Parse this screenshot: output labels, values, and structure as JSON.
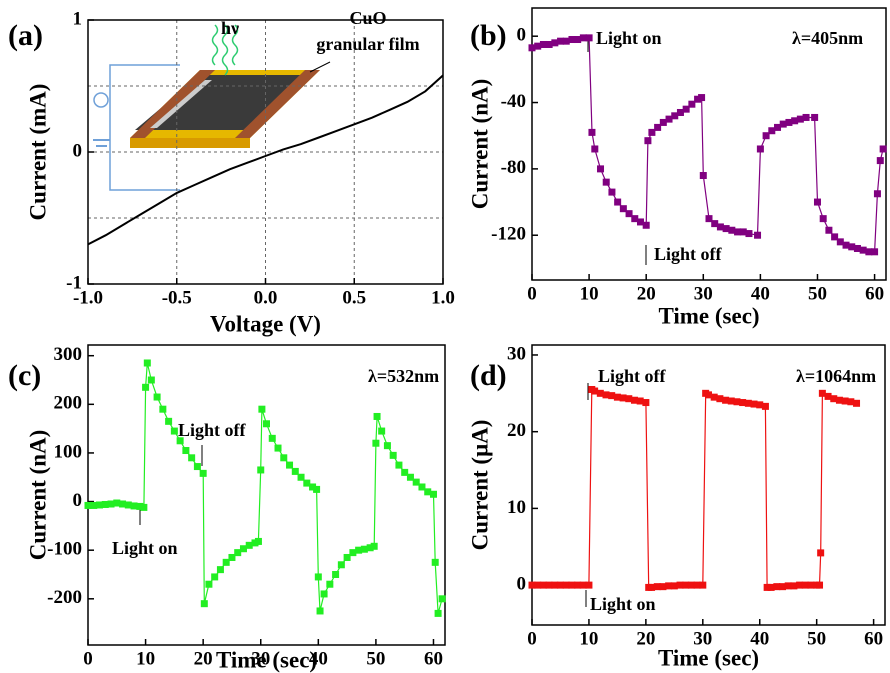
{
  "chart_data": [
    {
      "type": "line",
      "panel_label": "(a)",
      "x_label": "Voltage (V)",
      "y_label": "Current (mA)",
      "color": "#000000",
      "markers": false,
      "annotations": [
        "hν",
        "CuO",
        "granular film"
      ],
      "x": [
        -1,
        -0.9,
        -0.8,
        -0.7,
        -0.6,
        -0.5,
        -0.4,
        -0.3,
        -0.2,
        -0.1,
        0,
        0.1,
        0.2,
        0.3,
        0.4,
        0.5,
        0.6,
        0.7,
        0.8,
        0.9,
        1
      ],
      "values": [
        -0.7,
        -0.63,
        -0.55,
        -0.47,
        -0.39,
        -0.31,
        -0.25,
        -0.19,
        -0.13,
        -0.08,
        -0.03,
        0.02,
        0.06,
        0.11,
        0.16,
        0.21,
        0.26,
        0.32,
        0.38,
        0.46,
        0.58
      ],
      "xlim": [
        -1,
        1
      ],
      "ylim": [
        -1,
        1
      ],
      "xticks": [
        {
          "value": -1,
          "label": "-1.0"
        },
        {
          "value": -0.5,
          "label": "-0.5"
        },
        {
          "value": 0,
          "label": "0.0"
        },
        {
          "value": 0.5,
          "label": "0.5"
        },
        {
          "value": 1,
          "label": "1.0"
        }
      ],
      "yticks": [
        -1,
        0,
        1
      ],
      "xgrid": [
        -0.5,
        0,
        0.5
      ],
      "ygrid": [
        -0.5,
        0,
        0.5
      ]
    },
    {
      "type": "line",
      "panel_label": "(b)",
      "x_label": "Time (sec)",
      "y_label": "Current (nA)",
      "color": "#800080",
      "markers": true,
      "annotations": [
        "Light on",
        "Light off",
        "λ=405nm"
      ],
      "x": [
        0,
        1,
        2,
        3,
        4,
        5,
        6,
        7,
        8,
        9,
        10,
        10.5,
        11,
        12,
        13,
        14,
        15,
        16,
        17,
        18,
        19,
        20,
        20.3,
        21,
        22,
        23,
        24,
        25,
        26,
        27,
        28,
        29,
        29.7,
        30,
        31,
        32,
        33,
        34,
        35,
        36,
        37,
        38,
        39.5,
        40,
        41,
        42,
        43,
        44,
        45,
        46,
        47,
        48,
        49.5,
        50,
        51,
        52,
        53,
        54,
        55,
        56,
        57,
        58,
        59,
        60,
        60.5,
        61,
        61.5
      ],
      "values": [
        -7,
        -6,
        -5,
        -5,
        -4,
        -3,
        -3,
        -2,
        -2,
        -1,
        -1,
        -58,
        -68,
        -80,
        -88,
        -94,
        -100,
        -104,
        -107,
        -110,
        -112,
        -114,
        -63,
        -58,
        -55,
        -52,
        -50,
        -48,
        -46,
        -44,
        -41,
        -38,
        -37,
        -84,
        -110,
        -113,
        -115,
        -116,
        -117,
        -118,
        -118,
        -119,
        -120,
        -68,
        -60,
        -57,
        -55,
        -53,
        -52,
        -51,
        -50,
        -49,
        -49,
        -100,
        -110,
        -117,
        -121,
        -124,
        -126,
        -127,
        -128,
        -129,
        -130,
        -130,
        -95,
        -75,
        -68
      ],
      "xlim": [
        0,
        62
      ],
      "ylim": [
        -147,
        17
      ],
      "xticks": [
        0,
        10,
        20,
        30,
        40,
        50,
        60
      ],
      "yticks": [
        -120,
        -80,
        -40,
        0
      ]
    },
    {
      "type": "line",
      "panel_label": "(c)",
      "x_label": "Time (sec)",
      "y_label": "Current (nA)",
      "color": "#22ee22",
      "markers": true,
      "annotations": [
        "Light off",
        "Light on",
        "λ=532nm"
      ],
      "x": [
        0,
        1,
        2,
        3,
        4,
        5,
        6,
        7,
        8,
        9,
        9.7,
        10,
        10.3,
        11,
        12,
        13,
        14,
        15,
        16,
        17,
        18,
        19,
        20,
        20.2,
        21,
        22,
        23,
        24,
        25,
        26,
        27,
        28,
        29,
        29.6,
        30,
        30.2,
        31,
        32,
        33,
        34,
        35,
        36,
        37,
        38,
        39,
        39.7,
        40,
        40.3,
        41,
        42,
        43,
        44,
        45,
        46,
        47,
        48,
        49,
        49.7,
        50,
        50.2,
        51,
        52,
        53,
        54,
        55,
        56,
        57,
        58,
        59,
        60,
        60.3,
        60.8,
        61.5
      ],
      "values": [
        -8,
        -8,
        -7,
        -6,
        -5,
        -3,
        -5,
        -7,
        -9,
        -10,
        -12,
        235,
        285,
        250,
        215,
        190,
        165,
        145,
        125,
        105,
        90,
        72,
        58,
        -210,
        -170,
        -155,
        -140,
        -125,
        -115,
        -105,
        -97,
        -90,
        -85,
        -82,
        65,
        190,
        160,
        130,
        110,
        90,
        75,
        62,
        50,
        38,
        30,
        25,
        -155,
        -225,
        -190,
        -170,
        -150,
        -130,
        -115,
        -105,
        -100,
        -98,
        -95,
        -92,
        120,
        175,
        145,
        115,
        95,
        75,
        60,
        50,
        40,
        30,
        20,
        15,
        -125,
        -230,
        -200
      ],
      "xlim": [
        0,
        62
      ],
      "ylim": [
        -295,
        322
      ],
      "xticks": [
        0,
        10,
        20,
        30,
        40,
        50,
        60
      ],
      "yticks": [
        -200,
        -100,
        0,
        100,
        200,
        300
      ]
    },
    {
      "type": "line",
      "panel_label": "(d)",
      "x_label": "Time (sec)",
      "y_label": "Current (μA)",
      "color": "#ee1111",
      "markers": true,
      "annotations": [
        "Light off",
        "Light on",
        "λ=1064nm"
      ],
      "x": [
        0,
        1,
        2,
        3,
        4,
        5,
        6,
        7,
        8,
        9,
        10,
        10.5,
        11,
        12,
        13,
        14,
        15,
        16,
        17,
        18,
        19,
        20,
        20.5,
        21,
        22,
        23,
        24,
        25,
        26,
        27,
        28,
        29,
        30,
        30.5,
        31,
        32,
        33,
        34,
        35,
        36,
        37,
        38,
        39,
        40,
        41,
        41.3,
        42,
        43,
        44,
        45,
        46,
        47,
        48,
        49,
        50,
        50.5,
        50.7,
        51,
        52,
        53,
        54,
        55,
        56,
        57
      ],
      "values": [
        0,
        0,
        0,
        0,
        0,
        0,
        0,
        0,
        0,
        0,
        0,
        25.5,
        25.3,
        25,
        24.8,
        24.7,
        24.5,
        24.4,
        24.3,
        24.1,
        24,
        23.8,
        -0.3,
        -0.3,
        -0.2,
        -0.2,
        -0.1,
        -0.1,
        0,
        0,
        0,
        0,
        0,
        25,
        24.8,
        24.5,
        24.3,
        24.1,
        24,
        23.9,
        23.8,
        23.7,
        23.6,
        23.5,
        23.3,
        -0.3,
        -0.3,
        -0.2,
        -0.2,
        -0.1,
        -0.1,
        0,
        0,
        0,
        0,
        0,
        4.2,
        25,
        24.6,
        24.3,
        24.1,
        24,
        23.9,
        23.7
      ],
      "xlim": [
        0,
        62
      ],
      "ylim": [
        -5.2,
        31.3
      ],
      "xticks": [
        0,
        10,
        20,
        30,
        40,
        50,
        60
      ],
      "yticks": [
        0,
        10,
        20,
        30
      ]
    }
  ]
}
